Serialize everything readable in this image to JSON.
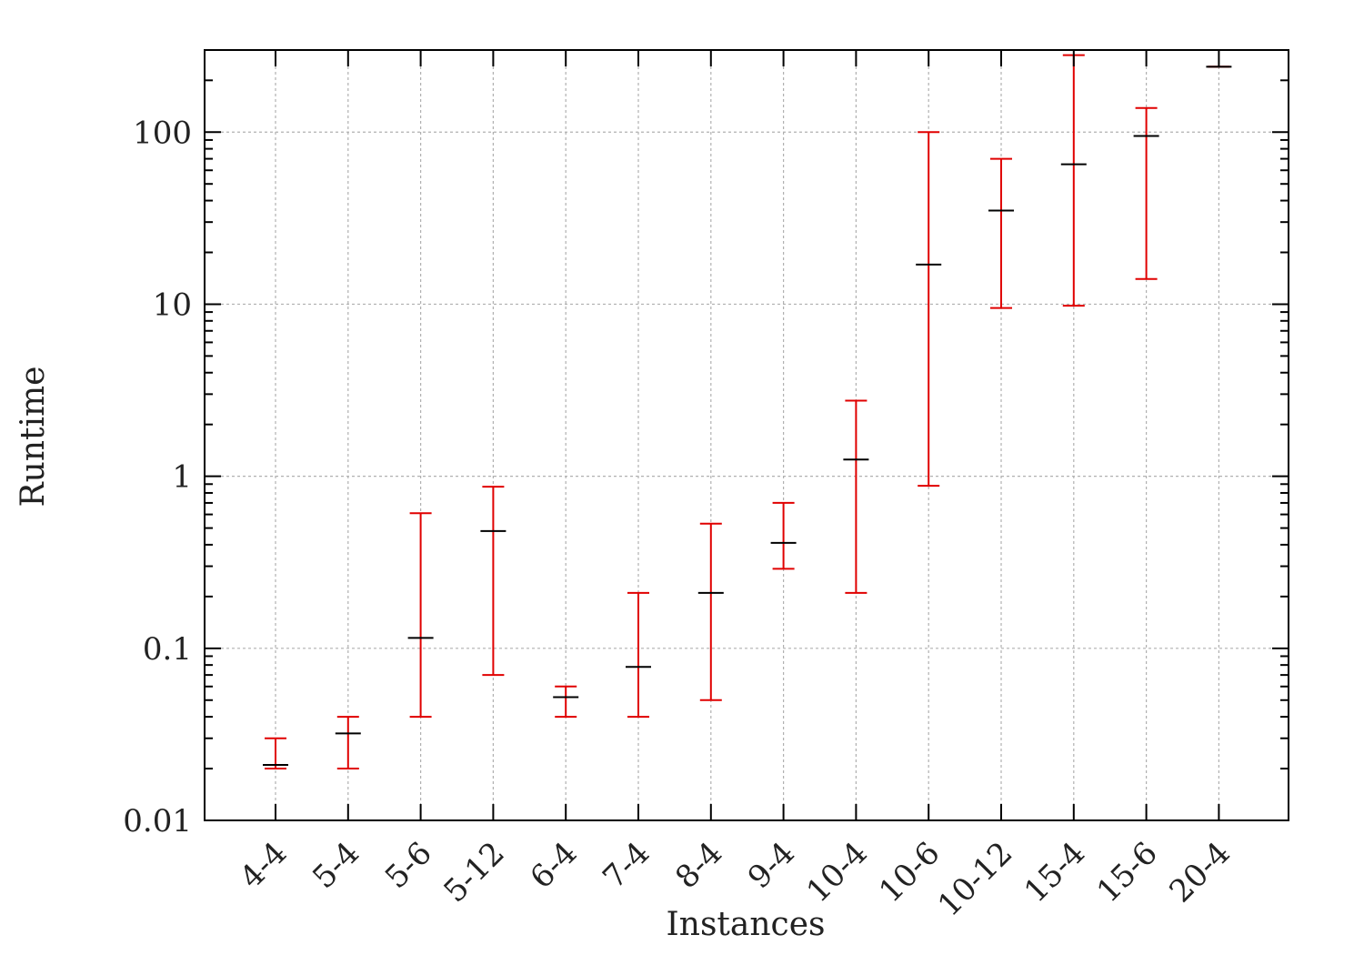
{
  "chart_data": {
    "type": "errorbar",
    "title": "",
    "xlabel": "Instances",
    "ylabel": "Runtime",
    "yscale": "log",
    "ylim": [
      0.01,
      300
    ],
    "grid": true,
    "legend": "none",
    "colors": {
      "errorbar": "#e00000",
      "median": "#000000",
      "grid": "#b0b0b0",
      "axis": "#000000"
    },
    "ytick_values": [
      0.01,
      0.1,
      1,
      10,
      100
    ],
    "ytick_labels": [
      "0.01",
      "0.1",
      "1",
      "10",
      "100"
    ],
    "categories": [
      "4-4",
      "5-4",
      "5-6",
      "5-12",
      "6-4",
      "7-4",
      "8-4",
      "9-4",
      "10-4",
      "10-6",
      "10-12",
      "15-4",
      "15-6",
      "20-4"
    ],
    "series": [
      {
        "values": [
          0.021,
          0.032,
          0.115,
          0.48,
          0.052,
          0.078,
          0.21,
          0.41,
          1.25,
          17,
          35,
          65,
          95,
          240
        ],
        "lower": [
          0.02,
          0.02,
          0.04,
          0.07,
          0.04,
          0.04,
          0.05,
          0.29,
          0.21,
          0.88,
          9.5,
          9.8,
          14,
          240
        ],
        "upper": [
          0.03,
          0.04,
          0.61,
          0.87,
          0.06,
          0.21,
          0.53,
          0.7,
          2.75,
          100,
          70,
          280,
          138,
          240
        ]
      }
    ]
  }
}
